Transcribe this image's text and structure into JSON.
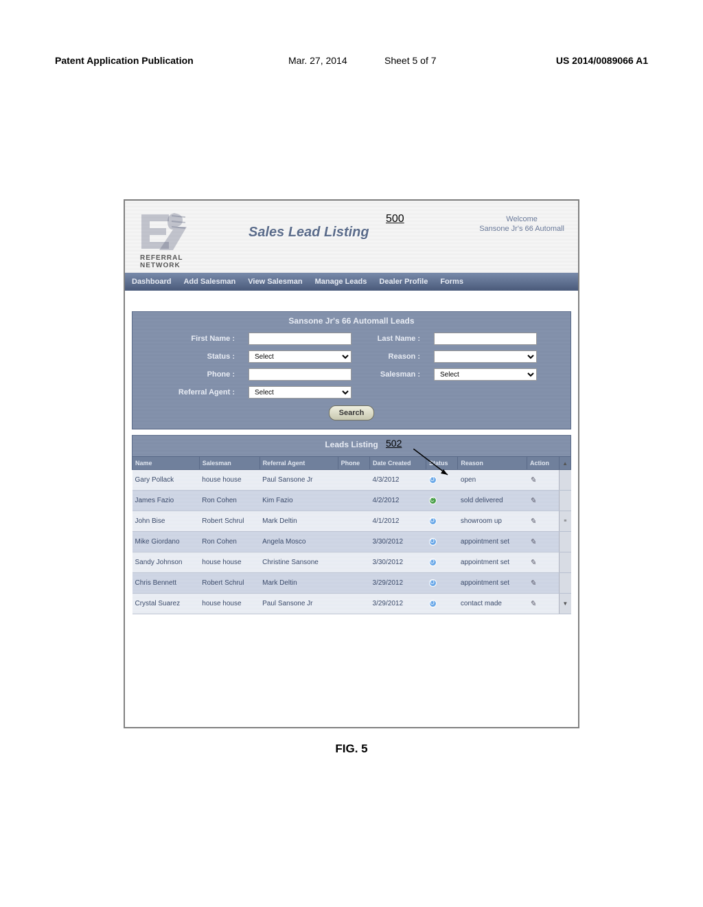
{
  "doc_header": {
    "publication": "Patent Application Publication",
    "date": "Mar. 27, 2014",
    "sheet": "Sheet 5 of 7",
    "docnum": "US 2014/0089066 A1"
  },
  "logo": {
    "top": "REFERRAL",
    "bottom": "NETWORK"
  },
  "title": "Sales Lead Listing",
  "ref_main": "500",
  "ref_table": "502",
  "welcome": {
    "line1": "Welcome",
    "line2": "Sansone Jr's 66 Automall"
  },
  "nav": [
    "Dashboard",
    "Add Salesman",
    "View Salesman",
    "Manage Leads",
    "Dealer Profile",
    "Forms"
  ],
  "search_panel": {
    "title": "Sansone Jr's 66 Automall Leads",
    "labels": {
      "first_name": "First Name :",
      "last_name": "Last Name :",
      "status": "Status :",
      "reason": "Reason :",
      "phone": "Phone :",
      "salesman": "Salesman :",
      "referral_agent": "Referral Agent :"
    },
    "select_placeholder": "Select",
    "search_label": "Search"
  },
  "listing": {
    "title": "Leads Listing",
    "columns": [
      "Name",
      "Salesman",
      "Referral Agent",
      "Phone",
      "Date Created",
      "Status",
      "Reason",
      "Action"
    ],
    "rows": [
      {
        "name": "Gary Pollack",
        "salesman": "house house",
        "agent": "Paul Sansone Jr",
        "phone": "",
        "date": "4/3/2012",
        "status": "O",
        "reason": "open"
      },
      {
        "name": "James Fazio",
        "salesman": "Ron Cohen",
        "agent": "Kim Fazio",
        "phone": "",
        "date": "4/2/2012",
        "status": "C",
        "reason": "sold delivered"
      },
      {
        "name": "John Bise",
        "salesman": "Robert Schrul",
        "agent": "Mark Deltin",
        "phone": "",
        "date": "4/1/2012",
        "status": "O",
        "reason": "showroom up"
      },
      {
        "name": "Mike Giordano",
        "salesman": "Ron Cohen",
        "agent": "Angela Mosco",
        "phone": "",
        "date": "3/30/2012",
        "status": "O",
        "reason": "appointment set"
      },
      {
        "name": "Sandy Johnson",
        "salesman": "house house",
        "agent": "Christine Sansone",
        "phone": "",
        "date": "3/30/2012",
        "status": "O",
        "reason": "appointment set"
      },
      {
        "name": "Chris Bennett",
        "salesman": "Robert Schrul",
        "agent": "Mark Deltin",
        "phone": "",
        "date": "3/29/2012",
        "status": "O",
        "reason": "appointment set"
      },
      {
        "name": "Crystal Suarez",
        "salesman": "house house",
        "agent": "Paul Sansone Jr",
        "phone": "",
        "date": "3/29/2012",
        "status": "O",
        "reason": "contact made"
      }
    ]
  },
  "figure_caption": "FIG. 5",
  "colors": {
    "nav_bg_top": "#788aaa",
    "nav_bg_bot": "#4a5a7a",
    "panel_bg": "#808ea8",
    "row_odd": "#e8ecf4",
    "row_even": "#ccd4e4",
    "title_color": "#5a6b8a"
  }
}
